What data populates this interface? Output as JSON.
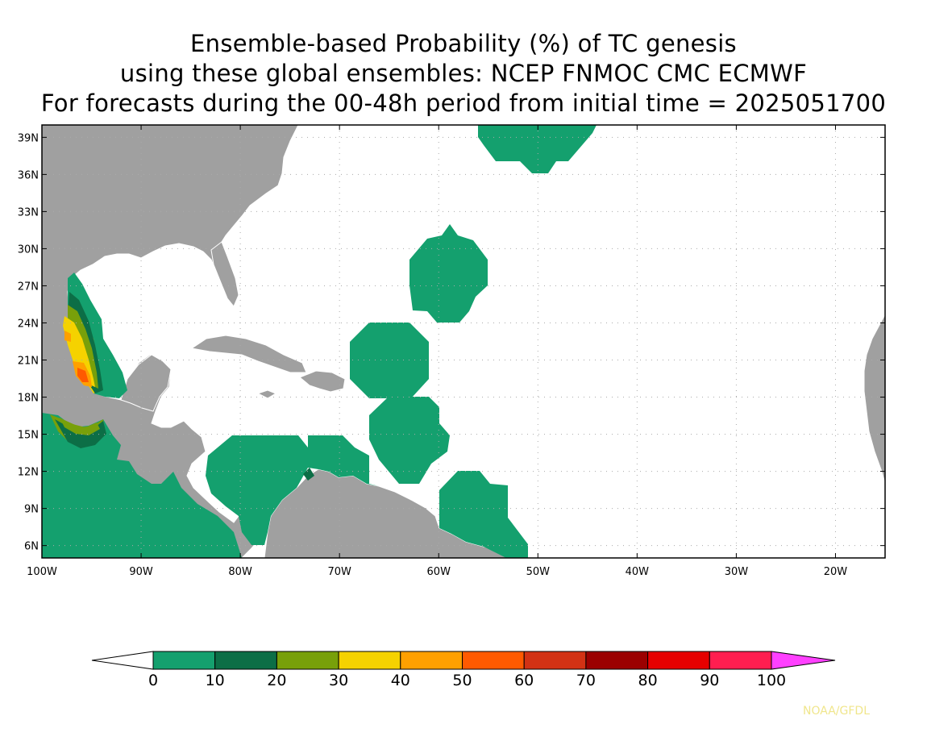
{
  "title": {
    "line1": "Ensemble-based Probability (%) of TC genesis",
    "line2": "using these global ensembles:   NCEP FNMOC CMC ECMWF",
    "line3": "For forecasts during the 00-48h period from initial time = 2025051700"
  },
  "map": {
    "lon_range": [
      -100,
      -15
    ],
    "lat_range": [
      5,
      40
    ],
    "land_color": "#a0a0a0",
    "ocean_color": "#ffffff",
    "border_color": "#ffffff",
    "grid": true,
    "lat_ticks": [
      {
        "value": 39,
        "label": "39N"
      },
      {
        "value": 36,
        "label": "36N"
      },
      {
        "value": 33,
        "label": "33N"
      },
      {
        "value": 30,
        "label": "30N"
      },
      {
        "value": 27,
        "label": "27N"
      },
      {
        "value": 24,
        "label": "24N"
      },
      {
        "value": 21,
        "label": "21N"
      },
      {
        "value": 18,
        "label": "18N"
      },
      {
        "value": 15,
        "label": "15N"
      },
      {
        "value": 12,
        "label": "12N"
      },
      {
        "value": 9,
        "label": "9N"
      },
      {
        "value": 6,
        "label": "6N"
      }
    ],
    "lon_ticks": [
      {
        "value": -100,
        "label": "100W"
      },
      {
        "value": -90,
        "label": "90W"
      },
      {
        "value": -80,
        "label": "80W"
      },
      {
        "value": -70,
        "label": "70W"
      },
      {
        "value": -60,
        "label": "60W"
      },
      {
        "value": -50,
        "label": "50W"
      },
      {
        "value": -40,
        "label": "40W"
      },
      {
        "value": -30,
        "label": "30W"
      },
      {
        "value": -20,
        "label": "20W"
      }
    ]
  },
  "colorbar": {
    "ticks": [
      "0",
      "10",
      "20",
      "30",
      "40",
      "50",
      "60",
      "70",
      "80",
      "90",
      "100"
    ],
    "under_color": "#ffffff",
    "over_color": "#ff40ff",
    "colors": [
      "#14a06e",
      "#0c6e46",
      "#78a00a",
      "#f5d200",
      "#ffa000",
      "#ff5a00",
      "#d23214",
      "#9b0000",
      "#e60000",
      "#ff1e50"
    ]
  },
  "probability_regions": [
    {
      "name": "gulf-of-mexico-west-coast",
      "level": 0
    },
    {
      "name": "central-atlantic-north",
      "level": 0
    },
    {
      "name": "central-atlantic-30n",
      "level": 0
    },
    {
      "name": "atlantic-21n-65w",
      "level": 0
    },
    {
      "name": "atlantic-15n-63w",
      "level": 0
    },
    {
      "name": "atlantic-9n-57w",
      "level": 0
    },
    {
      "name": "caribbean-west",
      "level": 0
    },
    {
      "name": "caribbean-central",
      "level": 0
    },
    {
      "name": "bay-of-campeche-core",
      "level": 3
    },
    {
      "name": "eastern-pacific",
      "level": 0
    },
    {
      "name": "eastern-pacific-core",
      "level": 2
    }
  ],
  "credit": {
    "text": "NOAA/GFDL",
    "color": "#f0e68c"
  }
}
